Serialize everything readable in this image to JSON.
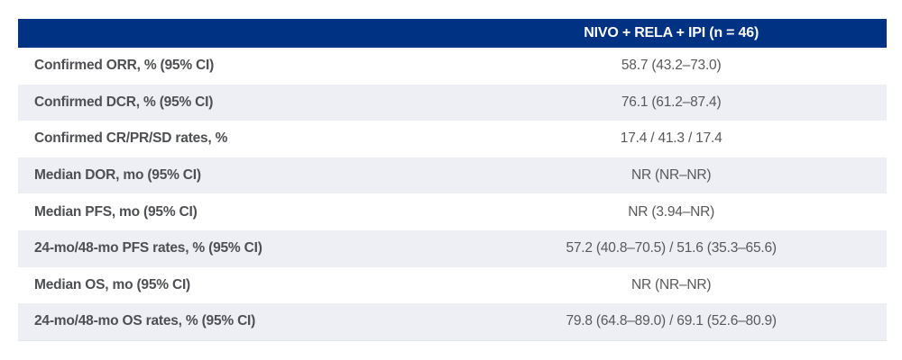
{
  "table": {
    "header": {
      "title": "NIVO + RELA + IPI (n = 46)"
    },
    "rows": [
      {
        "label": "Confirmed ORR, % (95% CI)",
        "value": "58.7 (43.2–73.0)"
      },
      {
        "label": "Confirmed DCR, % (95% CI)",
        "value": "76.1 (61.2–87.4)"
      },
      {
        "label": "Confirmed CR/PR/SD rates, %",
        "value": "17.4 / 41.3 / 17.4"
      },
      {
        "label": "Median DOR, mo (95% CI)",
        "value": "NR (NR–NR)"
      },
      {
        "label": "Median PFS, mo (95% CI)",
        "value": "NR (3.94–NR)"
      },
      {
        "label": "24-mo/48-mo PFS rates, % (95% CI)",
        "value": "57.2 (40.8–70.5) / 51.6 (35.3–65.6)"
      },
      {
        "label": "Median OS, mo (95% CI)",
        "value": "NR (NR–NR)"
      },
      {
        "label": "24-mo/48-mo OS rates, % (95% CI)",
        "value": "79.8 (64.8–89.0) / 69.1 (52.6–80.9)"
      }
    ],
    "colors": {
      "header_bg": "#003283",
      "alt_row_bg": "#edeff4",
      "row_bg": "#ffffff",
      "label_text": "#4d4f53",
      "value_text": "#58595b",
      "header_text": "#ffffff"
    }
  }
}
